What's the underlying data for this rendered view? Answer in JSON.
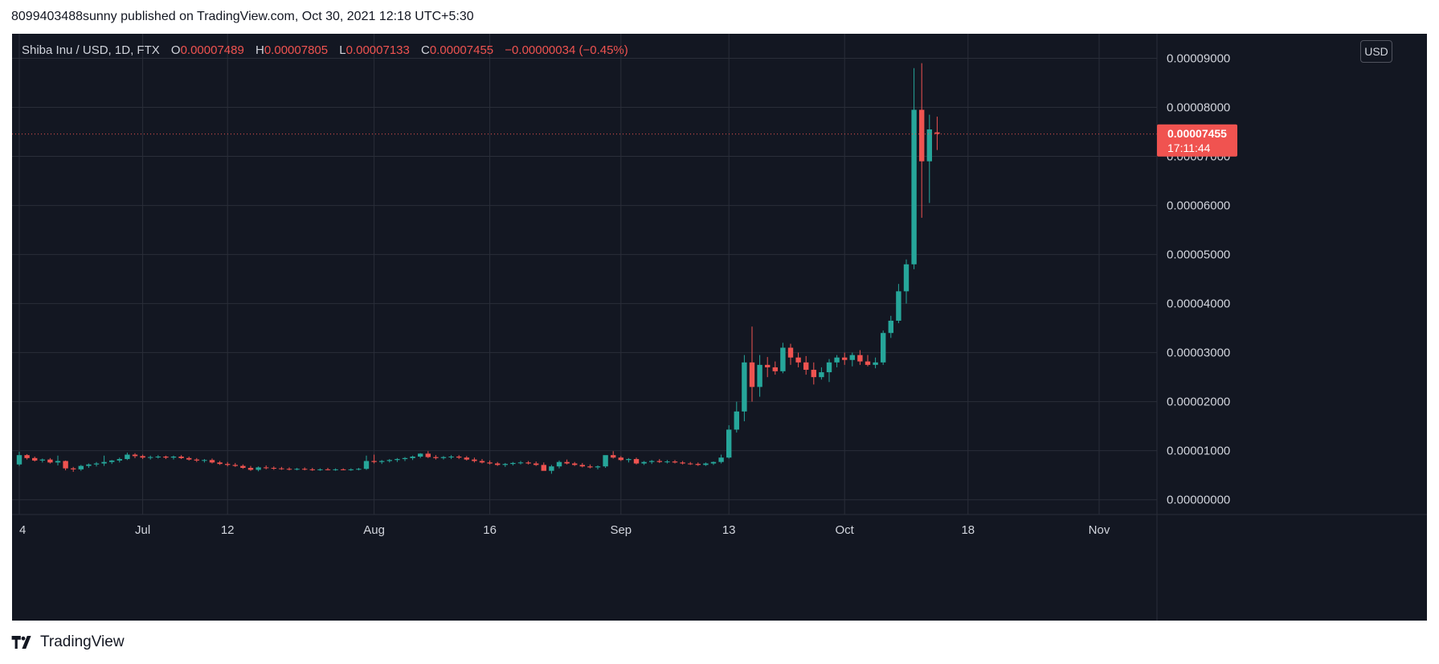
{
  "header": {
    "published": "8099403488sunny published on TradingView.com, Oct 30, 2021 12:18 UTC+5:30"
  },
  "legend": {
    "symbol": "Shiba Inu / USD, 1D, FTX",
    "open_label": "O",
    "open": "0.00007489",
    "high_label": "H",
    "high": "0.00007805",
    "low_label": "L",
    "low": "0.00007133",
    "close_label": "C",
    "close": "0.00007455",
    "change": "−0.00000034 (−0.45%)"
  },
  "price_axis": {
    "unit_button": "USD"
  },
  "last_price": {
    "price": "0.00007455",
    "countdown": "17:11:44"
  },
  "footer": {
    "brand": "TradingView",
    "logo_icon": "tradingview-logo-icon"
  },
  "colors": {
    "background": "#131722",
    "up": "#26a69a",
    "down": "#ef5350",
    "grid": "#2a2e39",
    "text": "#d1d4dc"
  },
  "chart_data": {
    "type": "candlestick",
    "unit": "USD",
    "ylim": [
      -3e-06,
      9.5e-05
    ],
    "y_ticks": [
      "0.00000000",
      "0.00001000",
      "0.00002000",
      "0.00003000",
      "0.00004000",
      "0.00005000",
      "0.00006000",
      "0.00007000",
      "0.00008000",
      "0.00009000"
    ],
    "x_ticks": [
      "4",
      "Jul",
      "12",
      "Aug",
      "16",
      "Sep",
      "13",
      "Oct",
      "18",
      "Nov"
    ],
    "grid": true,
    "last_price": 7.455e-05,
    "candles": [
      [
        7.2e-06,
        9.8e-06,
        6.9e-06,
        9.1e-06
      ],
      [
        9.1e-06,
        9.3e-06,
        8.2e-06,
        8.5e-06
      ],
      [
        8.5e-06,
        8.8e-06,
        7.8e-06,
        8e-06
      ],
      [
        8e-06,
        8.4e-06,
        7.6e-06,
        8.2e-06
      ],
      [
        8.2e-06,
        8.5e-06,
        7.4e-06,
        7.6e-06
      ],
      [
        7.6e-06,
        9e-06,
        7e-06,
        7.9e-06
      ],
      [
        7.9e-06,
        8e-06,
        6e-06,
        6.4e-06
      ],
      [
        6.4e-06,
        6.7e-06,
        5.7e-06,
        6.2e-06
      ],
      [
        6.2e-06,
        7.1e-06,
        5.9e-06,
        6.9e-06
      ],
      [
        6.9e-06,
        7.4e-06,
        6.5e-06,
        7.2e-06
      ],
      [
        7.2e-06,
        7.7e-06,
        6.8e-06,
        7.4e-06
      ],
      [
        7.4e-06,
        9e-06,
        6.9e-06,
        7.7e-06
      ],
      [
        7.7e-06,
        8.1e-06,
        7.3e-06,
        8e-06
      ],
      [
        8e-06,
        8.6e-06,
        7.6e-06,
        8.3e-06
      ],
      [
        8.3e-06,
        9.6e-06,
        8.1e-06,
        9.2e-06
      ],
      [
        9.2e-06,
        9.5e-06,
        8.5e-06,
        8.9e-06
      ],
      [
        8.9e-06,
        9.2e-06,
        8.3e-06,
        8.6e-06
      ],
      [
        8.6e-06,
        9e-06,
        8.2e-06,
        8.7e-06
      ],
      [
        8.7e-06,
        9.1e-06,
        8.4e-06,
        8.8e-06
      ],
      [
        8.8e-06,
        9e-06,
        8.3e-06,
        8.6e-06
      ],
      [
        8.6e-06,
        9e-06,
        8.2e-06,
        8.8e-06
      ],
      [
        8.8e-06,
        9.1e-06,
        8.3e-06,
        8.5e-06
      ],
      [
        8.5e-06,
        8.8e-06,
        8e-06,
        8.2e-06
      ],
      [
        8.2e-06,
        8.5e-06,
        7.7e-06,
        8e-06
      ],
      [
        8e-06,
        8.3e-06,
        7.6e-06,
        8.1e-06
      ],
      [
        8.1e-06,
        8.4e-06,
        7.4e-06,
        7.6e-06
      ],
      [
        7.6e-06,
        7.9e-06,
        7.1e-06,
        7.3e-06
      ],
      [
        7.3e-06,
        7.7e-06,
        6.8e-06,
        7.1e-06
      ],
      [
        7.1e-06,
        7.5e-06,
        6.7e-06,
        6.9e-06
      ],
      [
        6.9e-06,
        7.2e-06,
        6.3e-06,
        6.5e-06
      ],
      [
        6.5e-06,
        6.9e-06,
        5.9e-06,
        6.1e-06
      ],
      [
        6.1e-06,
        6.8e-06,
        5.8e-06,
        6.6e-06
      ],
      [
        6.6e-06,
        7e-06,
        6.2e-06,
        6.5e-06
      ],
      [
        6.5e-06,
        6.8e-06,
        6.1e-06,
        6.4e-06
      ],
      [
        6.4e-06,
        6.7e-06,
        6.1e-06,
        6.3e-06
      ],
      [
        6.3e-06,
        6.6e-06,
        6e-06,
        6.2e-06
      ],
      [
        6.2e-06,
        6.5e-06,
        6e-06,
        6.3e-06
      ],
      [
        6.3e-06,
        6.6e-06,
        6e-06,
        6.2e-06
      ],
      [
        6.2e-06,
        6.5e-06,
        5.9e-06,
        6.1e-06
      ],
      [
        6.1e-06,
        6.4e-06,
        5.9e-06,
        6.2e-06
      ],
      [
        6.2e-06,
        6.5e-06,
        6e-06,
        6.1e-06
      ],
      [
        6.1e-06,
        6.4e-06,
        5.9e-06,
        6.2e-06
      ],
      [
        6.2e-06,
        6.4e-06,
        6e-06,
        6.1e-06
      ],
      [
        6.1e-06,
        6.4e-06,
        5.9e-06,
        6.2e-06
      ],
      [
        6.2e-06,
        6.5e-06,
        6e-06,
        6.3e-06
      ],
      [
        6.3e-06,
        9e-06,
        6.1e-06,
        7.9e-06
      ],
      [
        7.9e-06,
        9.2e-06,
        7.4e-06,
        7.7e-06
      ],
      [
        7.7e-06,
        8.1e-06,
        7.3e-06,
        7.9e-06
      ],
      [
        7.9e-06,
        8.3e-06,
        7.6e-06,
        8.1e-06
      ],
      [
        8.1e-06,
        8.5e-06,
        7.7e-06,
        8.3e-06
      ],
      [
        8.3e-06,
        8.7e-06,
        7.9e-06,
        8.5e-06
      ],
      [
        8.5e-06,
        9e-06,
        8.1e-06,
        8.8e-06
      ],
      [
        8.8e-06,
        9.5e-06,
        8.5e-06,
        9.4e-06
      ],
      [
        9.4e-06,
        9.9e-06,
        8.5e-06,
        8.7e-06
      ],
      [
        8.7e-06,
        9.1e-06,
        8.2e-06,
        8.5e-06
      ],
      [
        8.5e-06,
        8.9e-06,
        8.2e-06,
        8.7e-06
      ],
      [
        8.7e-06,
        9.1e-06,
        8.3e-06,
        8.8e-06
      ],
      [
        8.8e-06,
        9.1e-06,
        8.3e-06,
        8.6e-06
      ],
      [
        8.6e-06,
        8.9e-06,
        8e-06,
        8.2e-06
      ],
      [
        8.2e-06,
        8.6e-06,
        7.6e-06,
        7.9e-06
      ],
      [
        7.9e-06,
        8.3e-06,
        7.4e-06,
        7.6e-06
      ],
      [
        7.6e-06,
        8e-06,
        7.2e-06,
        7.4e-06
      ],
      [
        7.4e-06,
        7.7e-06,
        6.9e-06,
        7.1e-06
      ],
      [
        7.1e-06,
        7.5e-06,
        6.7e-06,
        7.3e-06
      ],
      [
        7.3e-06,
        7.7e-06,
        7e-06,
        7.5e-06
      ],
      [
        7.5e-06,
        7.9e-06,
        7.2e-06,
        7.6e-06
      ],
      [
        7.6e-06,
        7.9e-06,
        7.2e-06,
        7.4e-06
      ],
      [
        7.4e-06,
        7.8e-06,
        6.9e-06,
        7.1e-06
      ],
      [
        7.1e-06,
        7.6e-06,
        6e-06,
        5.9e-06
      ],
      [
        5.9e-06,
        7.1e-06,
        5.3e-06,
        6.8e-06
      ],
      [
        6.8e-06,
        8e-06,
        6.4e-06,
        7.7e-06
      ],
      [
        7.7e-06,
        8.2e-06,
        7.2e-06,
        7.4e-06
      ],
      [
        7.4e-06,
        7.7e-06,
        6.9e-06,
        7.1e-06
      ],
      [
        7.1e-06,
        7.5e-06,
        6.6e-06,
        6.8e-06
      ],
      [
        6.8e-06,
        7.2e-06,
        6.4e-06,
        6.6e-06
      ],
      [
        6.6e-06,
        7e-06,
        6.2e-06,
        6.8e-06
      ],
      [
        6.8e-06,
        8.9e-06,
        6.5e-06,
        9.1e-06
      ],
      [
        9.1e-06,
        9.9e-06,
        8.4e-06,
        8.6e-06
      ],
      [
        8.6e-06,
        8.9e-06,
        7.9e-06,
        8.1e-06
      ],
      [
        8.1e-06,
        8.5e-06,
        7.6e-06,
        8.3e-06
      ],
      [
        8.3e-06,
        8.6e-06,
        7.2e-06,
        7.4e-06
      ],
      [
        7.4e-06,
        7.9e-06,
        7.1e-06,
        7.7e-06
      ],
      [
        7.7e-06,
        8.1e-06,
        7.3e-06,
        7.9e-06
      ],
      [
        7.9e-06,
        8.3e-06,
        7.5e-06,
        7.7e-06
      ],
      [
        7.7e-06,
        8.1e-06,
        7.4e-06,
        7.8e-06
      ],
      [
        7.8e-06,
        8.1e-06,
        7.4e-06,
        7.6e-06
      ],
      [
        7.6e-06,
        7.9e-06,
        7.2e-06,
        7.4e-06
      ],
      [
        7.4e-06,
        7.7e-06,
        7.1e-06,
        7.3e-06
      ],
      [
        7.3e-06,
        7.6e-06,
        6.9e-06,
        7.1e-06
      ],
      [
        7.1e-06,
        7.6e-06,
        6.9e-06,
        7.4e-06
      ],
      [
        7.4e-06,
        7.8e-06,
        7.1e-06,
        7.7e-06
      ],
      [
        7.7e-06,
        9.2e-06,
        7.4e-06,
        8.6e-06
      ],
      [
        8.6e-06,
        1.52e-05,
        8.4e-06,
        1.43e-05
      ],
      [
        1.43e-05,
        2e-05,
        1.37e-05,
        1.8e-05
      ],
      [
        1.8e-05,
        2.95e-05,
        1.6e-05,
        2.8e-05
      ],
      [
        2.8e-05,
        3.53e-05,
        2e-05,
        2.3e-05
      ],
      [
        2.3e-05,
        2.95e-05,
        2.1e-05,
        2.75e-05
      ],
      [
        2.75e-05,
        2.91e-05,
        2.5e-05,
        2.7e-05
      ],
      [
        2.7e-05,
        2.82e-05,
        2.55e-05,
        2.62e-05
      ],
      [
        2.62e-05,
        3.2e-05,
        2.58e-05,
        3.1e-05
      ],
      [
        3.1e-05,
        3.18e-05,
        2.75e-05,
        2.9e-05
      ],
      [
        2.9e-05,
        3e-05,
        2.7e-05,
        2.8e-05
      ],
      [
        2.8e-05,
        2.93e-05,
        2.55e-05,
        2.65e-05
      ],
      [
        2.65e-05,
        2.8e-05,
        2.35e-05,
        2.5e-05
      ],
      [
        2.5e-05,
        2.7e-05,
        2.45e-05,
        2.6e-05
      ],
      [
        2.6e-05,
        2.87e-05,
        2.4e-05,
        2.8e-05
      ],
      [
        2.8e-05,
        2.95e-05,
        2.7e-05,
        2.9e-05
      ],
      [
        2.9e-05,
        3e-05,
        2.75e-05,
        2.85e-05
      ],
      [
        2.85e-05,
        3e-05,
        2.72e-05,
        2.95e-05
      ],
      [
        2.95e-05,
        3.05e-05,
        2.75e-05,
        2.82e-05
      ],
      [
        2.82e-05,
        2.95e-05,
        2.72e-05,
        2.75e-05
      ],
      [
        2.75e-05,
        2.9e-05,
        2.68e-05,
        2.8e-05
      ],
      [
        2.8e-05,
        3.45e-05,
        2.75e-05,
        3.4e-05
      ],
      [
        3.4e-05,
        3.75e-05,
        3.3e-05,
        3.65e-05
      ],
      [
        3.65e-05,
        4.4e-05,
        3.6e-05,
        4.25e-05
      ],
      [
        4.25e-05,
        4.9e-05,
        4e-05,
        4.8e-05
      ],
      [
        4.8e-05,
        8.8e-05,
        4.7e-05,
        7.95e-05
      ],
      [
        7.95e-05,
        8.9e-05,
        5.75e-05,
        6.9e-05
      ],
      [
        6.9e-05,
        7.85e-05,
        6.05e-05,
        7.55e-05
      ],
      [
        7.49e-05,
        7.81e-05,
        7.13e-05,
        7.46e-05
      ]
    ]
  }
}
